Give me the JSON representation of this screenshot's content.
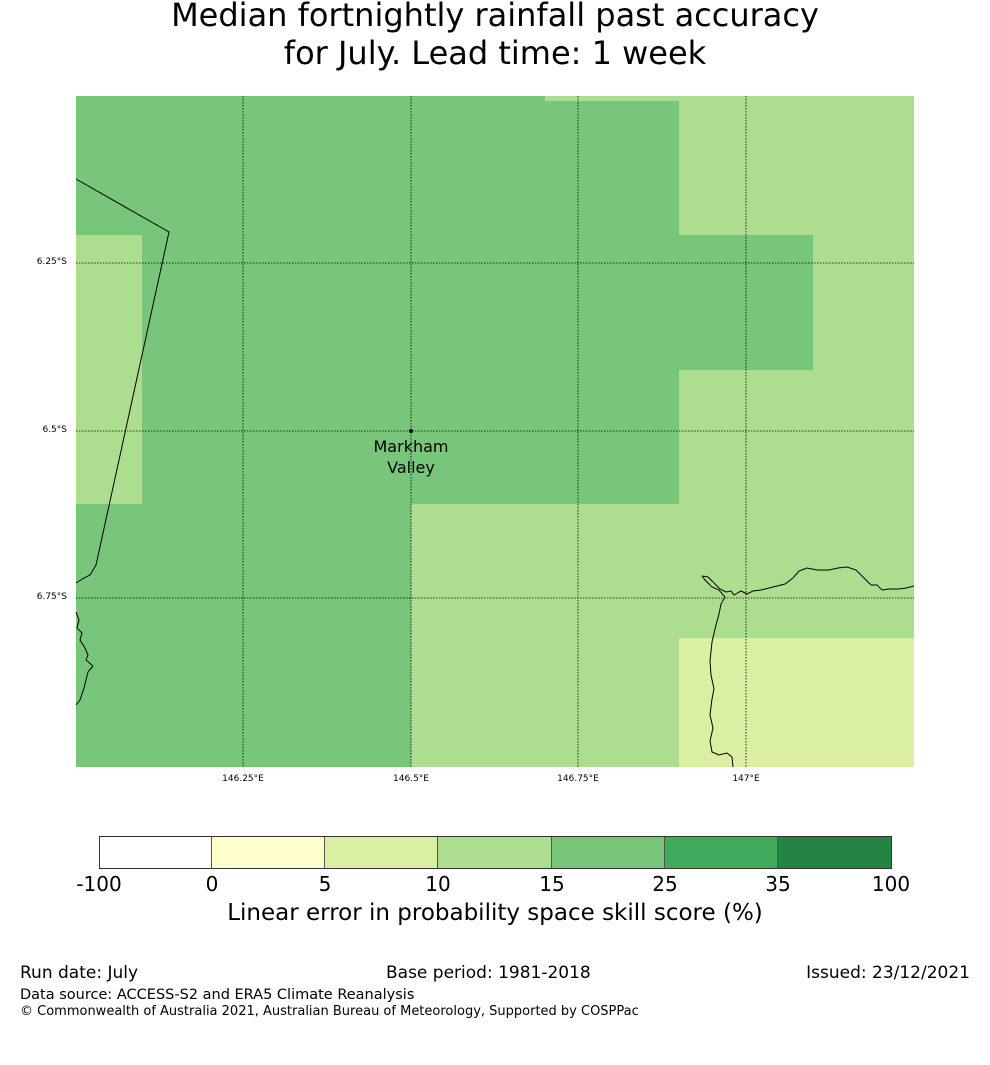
{
  "title": {
    "line1": "Median fortnightly rainfall past accuracy",
    "line2": "for July. Lead time: 1 week"
  },
  "map": {
    "latitude_labels": [
      "6.25°S",
      "6.5°S",
      "6.75°S"
    ],
    "longitude_labels": [
      "146.25°E",
      "146.5°E",
      "146.75°E",
      "147°E"
    ],
    "place_name_line1": "Markham",
    "place_name_line2": "Valley",
    "colors": {
      "band_15_25": "#78c679",
      "band_10_15": "#addd8e",
      "band_5_10": "#d9f0a3"
    }
  },
  "colorbar": {
    "tick_labels": [
      "-100",
      "0",
      "5",
      "10",
      "15",
      "25",
      "35",
      "100"
    ],
    "colors": [
      "#ffffff",
      "#ffffcc",
      "#d9f0a3",
      "#addd8e",
      "#78c679",
      "#41ab5d",
      "#238443"
    ],
    "label": "Linear error in probability space skill score (%)"
  },
  "footer": {
    "run_date": "Run date: July",
    "base_period": "Base period: 1981-2018",
    "issued": "Issued: 23/12/2021",
    "data_source": "Data source: ACCESS-S2 and ERA5 Climate Reanalysis",
    "copyright": "© Commonwealth of Australia 2021, Australian Bureau of Meteorology, Supported by COSPPac"
  }
}
